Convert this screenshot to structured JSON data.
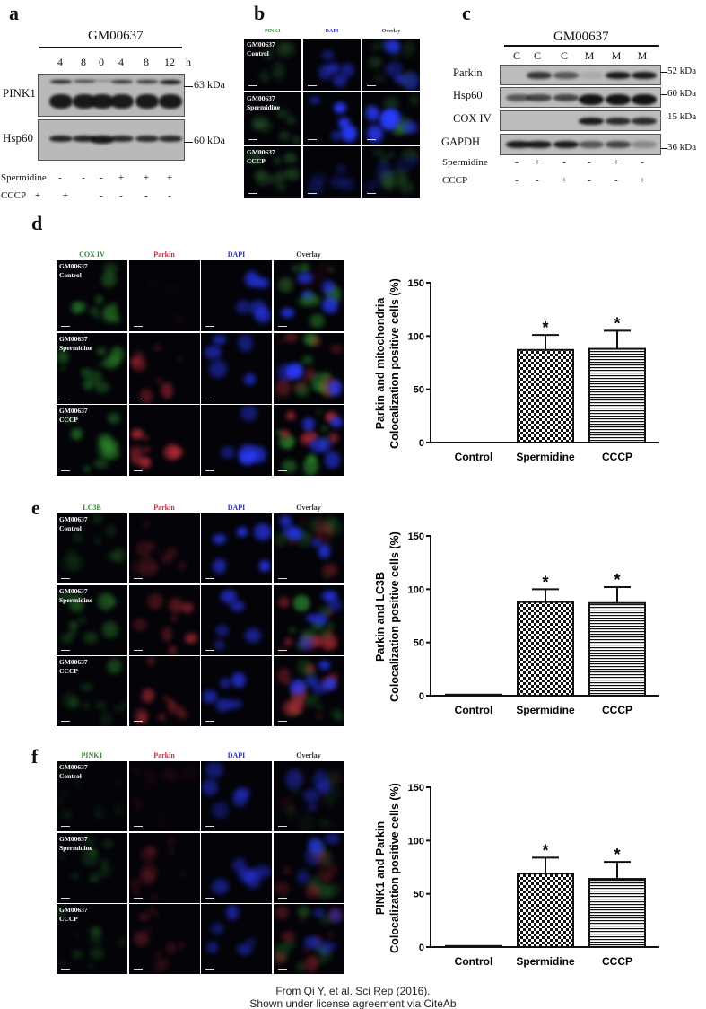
{
  "panels": {
    "a": {
      "label": "a",
      "cell_line": "GM00637",
      "time_unit": "h",
      "lanes": [
        "4",
        "8",
        "0",
        "4",
        "8",
        "12"
      ],
      "blots": [
        {
          "name": "PINK1",
          "marker": "63 kDa"
        },
        {
          "name": "Hsp60",
          "marker": "60 kDa"
        }
      ],
      "treatments": [
        {
          "name": "Spermidine",
          "values": [
            "-",
            "-",
            "-",
            "+",
            "+",
            "+"
          ]
        },
        {
          "name": "CCCP",
          "values": [
            "+",
            "+",
            "-",
            "-",
            "-",
            "-"
          ]
        }
      ]
    },
    "b": {
      "label": "b",
      "channels": [
        "PINK1",
        "DAPI",
        "Overlay"
      ],
      "channel_colors": [
        "#3a8a3a",
        "#2a2ad0",
        "#333333"
      ],
      "rows": [
        "GM00637\nControl",
        "GM00637\nSpermidine",
        "GM00637\nCCCP"
      ]
    },
    "c": {
      "label": "c",
      "cell_line": "GM00637",
      "lanes": [
        "C",
        "C",
        "C",
        "M",
        "M",
        "M"
      ],
      "blots": [
        {
          "name": "Parkin",
          "marker": "52 kDa"
        },
        {
          "name": "Hsp60",
          "marker": "60 kDa"
        },
        {
          "name": "COX IV",
          "marker": "15 kDa"
        },
        {
          "name": "GAPDH",
          "marker": "36 kDa"
        }
      ],
      "treatments": [
        {
          "name": "Spermidine",
          "values": [
            "-",
            "+",
            "-",
            "-",
            "+",
            "-"
          ]
        },
        {
          "name": "CCCP",
          "values": [
            "-",
            "-",
            "+",
            "-",
            "-",
            "+"
          ]
        }
      ]
    },
    "d": {
      "label": "d",
      "channels": [
        "COX IV",
        "Parkin",
        "DAPI",
        "Overlay"
      ],
      "channel_colors": [
        "#2e8b2e",
        "#c0303a",
        "#2a2ad0",
        "#333333"
      ],
      "rows": [
        "GM00637\nControl",
        "GM00637\nSpermidine",
        "GM00637\nCCCP"
      ]
    },
    "e": {
      "label": "e",
      "channels": [
        "LC3B",
        "Parkin",
        "DAPI",
        "Overlay"
      ],
      "channel_colors": [
        "#2e8b2e",
        "#c0303a",
        "#2a2ad0",
        "#333333"
      ],
      "rows": [
        "GM00637\nControl",
        "GM00637\nSpermidine",
        "GM00637\nCCCP"
      ]
    },
    "f": {
      "label": "f",
      "channels": [
        "PINK1",
        "Parkin",
        "DAPI",
        "Overlay"
      ],
      "channel_colors": [
        "#2e8b2e",
        "#c0303a",
        "#2a2ad0",
        "#333333"
      ],
      "rows": [
        "GM00637\nControl",
        "GM00637\nSpermidine",
        "GM00637\nCCCP"
      ]
    }
  },
  "chart_data": [
    {
      "panel": "d",
      "type": "bar",
      "categories": [
        "Control",
        "Spermidine",
        "CCCP"
      ],
      "values": [
        0,
        87,
        88
      ],
      "error_upper": [
        0,
        101,
        105
      ],
      "annotations": [
        "",
        "*",
        "*"
      ],
      "patterns": [
        "none",
        "checkerboard",
        "horizontal-stripes"
      ],
      "ylabel_lines": [
        "Parkin and mitochondria",
        "Colocalization positive cells (%)"
      ],
      "yticks": [
        0,
        50,
        100,
        150
      ],
      "ylim": [
        0,
        150
      ],
      "grid": false
    },
    {
      "panel": "e",
      "type": "bar",
      "categories": [
        "Control",
        "Spermidine",
        "CCCP"
      ],
      "values": [
        1,
        88,
        87
      ],
      "error_upper": [
        1,
        100,
        102
      ],
      "annotations": [
        "",
        "*",
        "*"
      ],
      "patterns": [
        "none",
        "checkerboard",
        "horizontal-stripes"
      ],
      "ylabel_lines": [
        "Parkin and LC3B",
        "Colocalization positive cells (%)"
      ],
      "yticks": [
        0,
        50,
        100,
        150
      ],
      "ylim": [
        0,
        150
      ],
      "grid": false
    },
    {
      "panel": "f",
      "type": "bar",
      "categories": [
        "Control",
        "Spermidine",
        "CCCP"
      ],
      "values": [
        1,
        69,
        64
      ],
      "error_upper": [
        1,
        84,
        80
      ],
      "annotations": [
        "",
        "*",
        "*"
      ],
      "patterns": [
        "none",
        "checkerboard",
        "horizontal-stripes"
      ],
      "ylabel_lines": [
        "PINK1 and Parkin",
        "Colocalization positive cells (%)"
      ],
      "yticks": [
        0,
        50,
        100,
        150
      ],
      "ylim": [
        0,
        150
      ],
      "grid": false
    }
  ],
  "caption": [
    "From Qi Y, et al. Sci Rep (2016).",
    "Shown under license agreement via CiteAb"
  ]
}
